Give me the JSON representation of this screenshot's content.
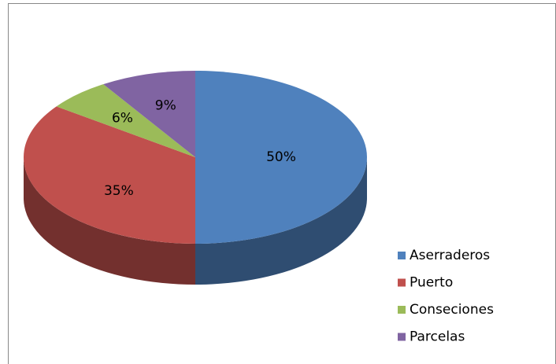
{
  "chart_data": {
    "type": "pie",
    "categories": [
      "Aserraderos",
      "Puerto",
      "Conseciones",
      "Parcelas"
    ],
    "values": [
      50,
      35,
      6,
      9
    ],
    "value_labels": [
      "50%",
      "35%",
      "6%",
      "9%"
    ],
    "colors": [
      "#4f81bd",
      "#c0504d",
      "#9bbb59",
      "#8064a2"
    ],
    "legend": "right"
  }
}
